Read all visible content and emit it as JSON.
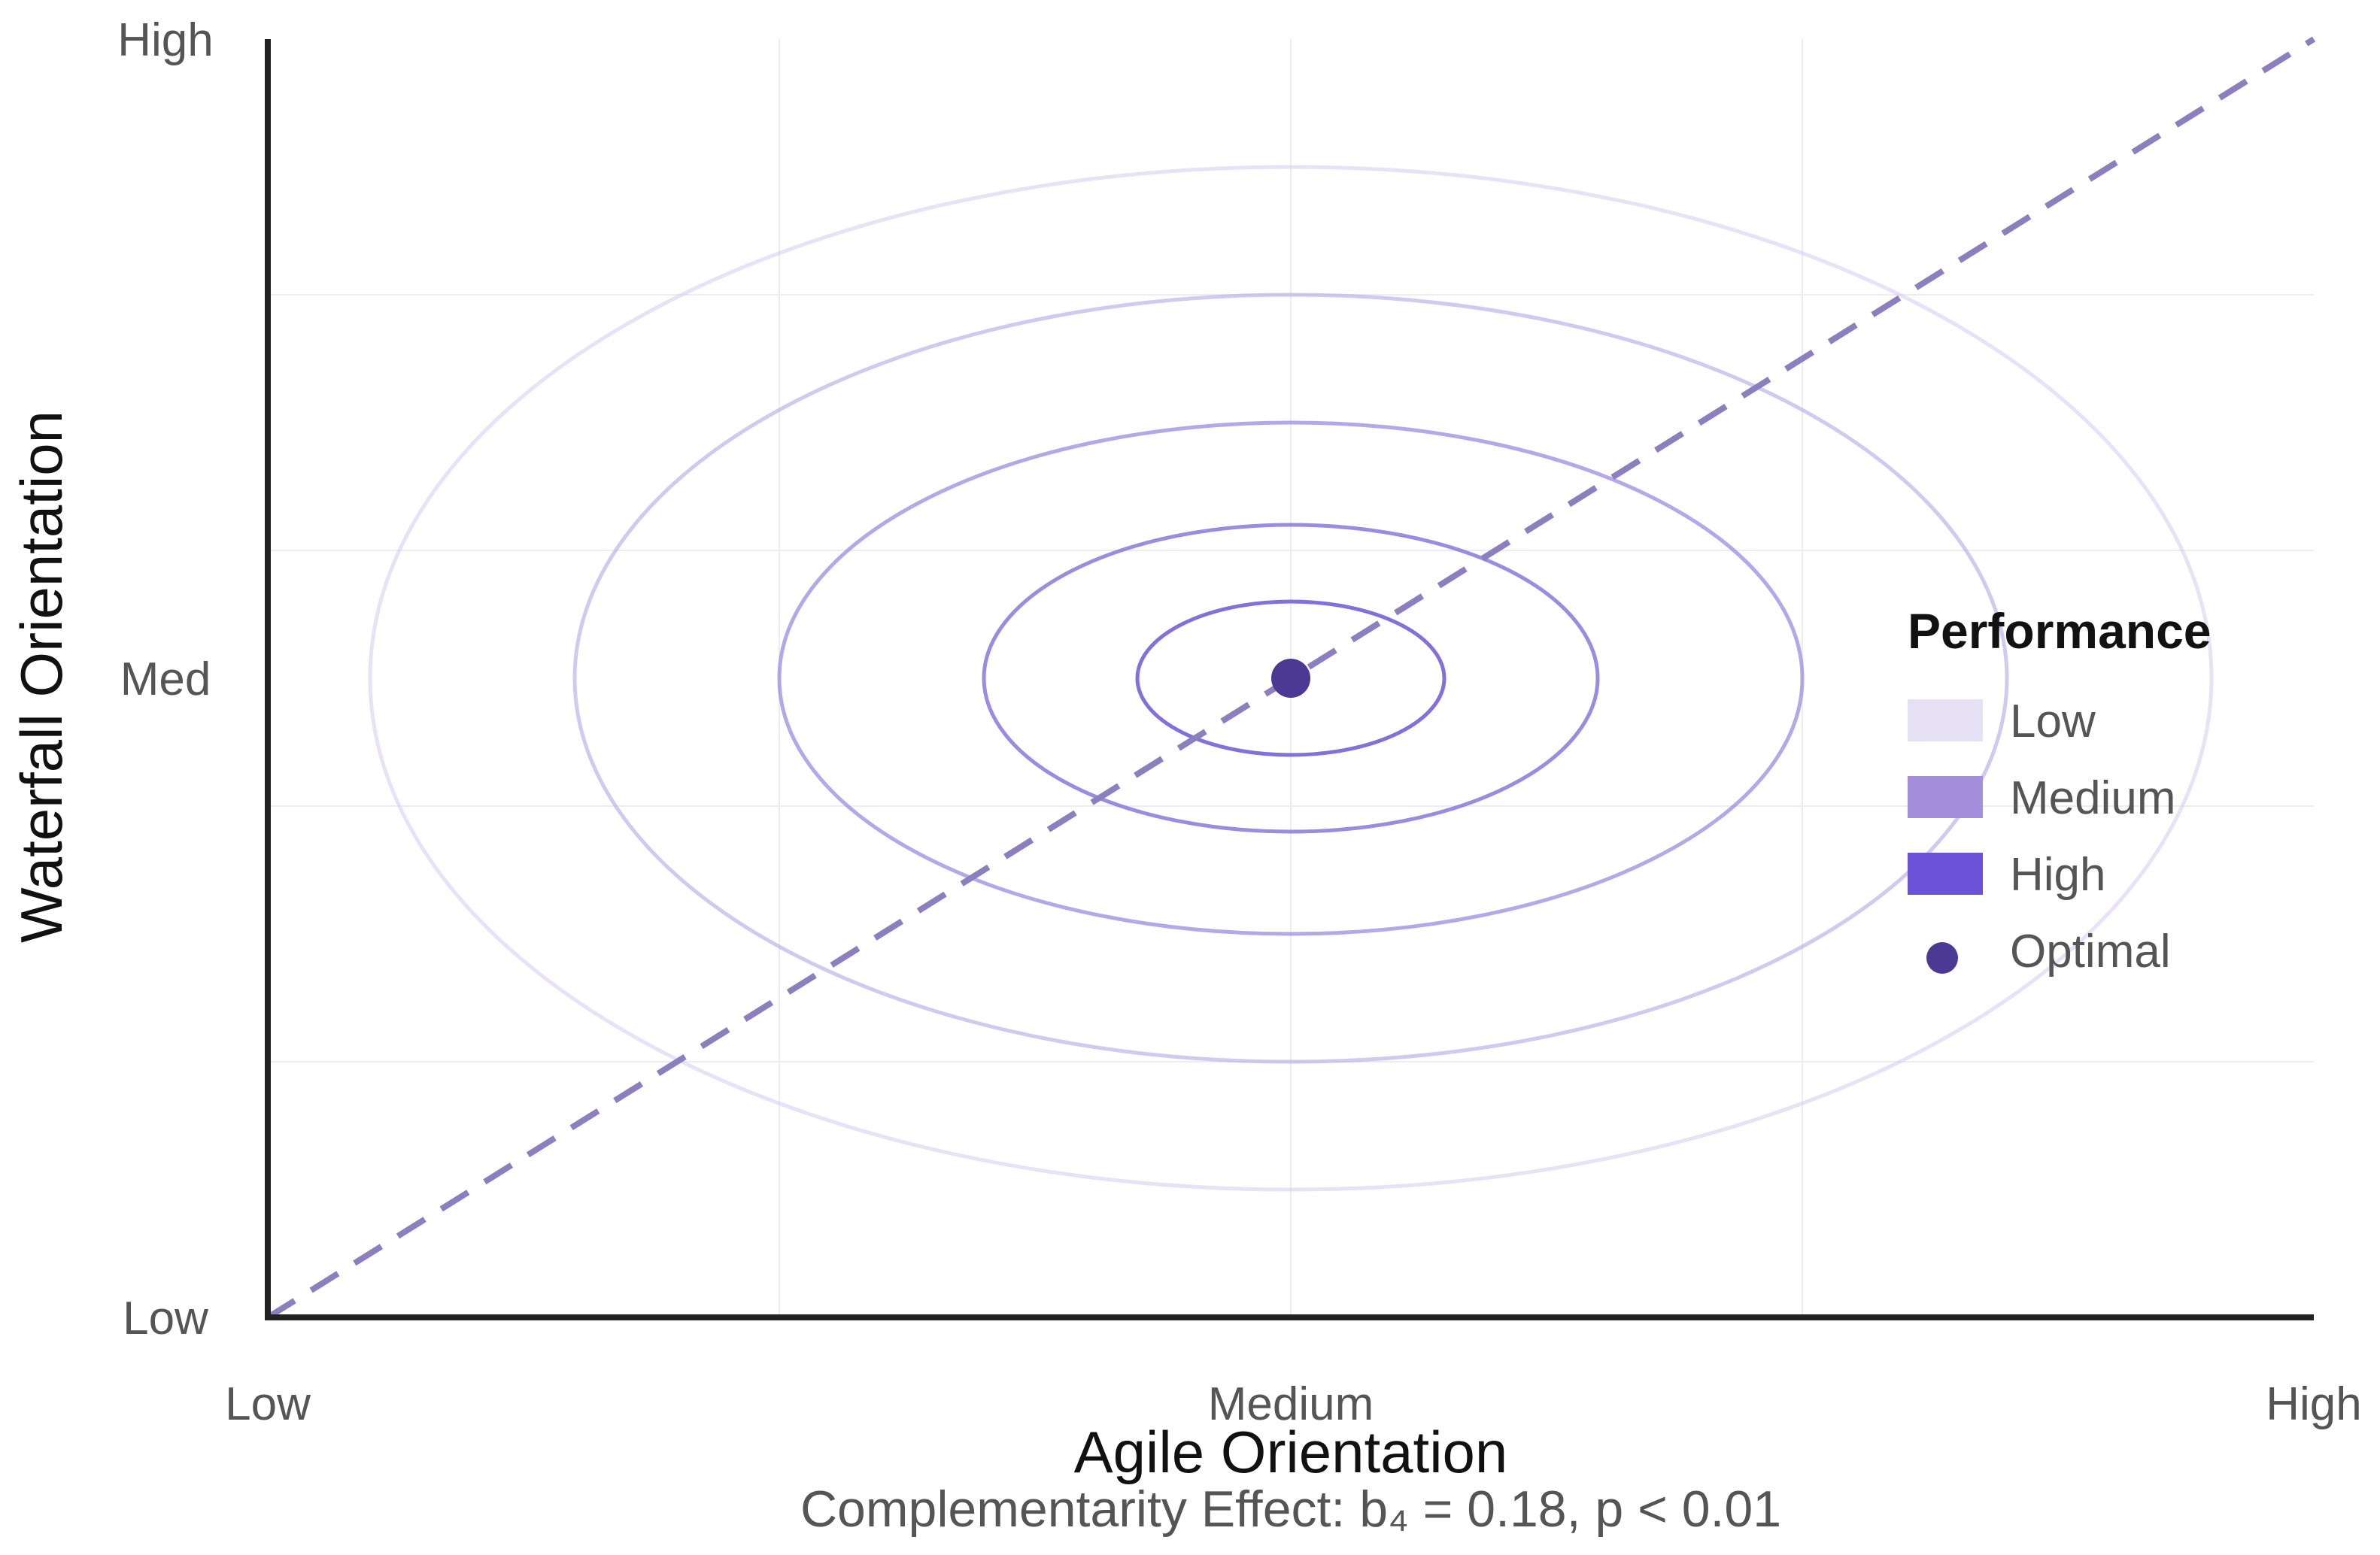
{
  "chart_data": {
    "type": "contour",
    "xlabel": "Agile Orientation",
    "ylabel": "Waterfall Orientation",
    "x_ticks": [
      "Low",
      "Medium",
      "High"
    ],
    "y_ticks": [
      "Low",
      "Med",
      "High"
    ],
    "xlim": [
      0,
      2
    ],
    "ylim": [
      0,
      2
    ],
    "caption": "Complementarity Effect: b₄ = 0.18, p < 0.01",
    "grid": true,
    "diagonal_reference_line": {
      "style": "dashed",
      "from": [
        0,
        0
      ],
      "to": [
        2,
        2
      ],
      "color": "#8b7fc0"
    },
    "center": {
      "x": 1,
      "y": 1
    },
    "contours": [
      {
        "rx": 0.15,
        "ry": 0.12,
        "color": "#7b68d9",
        "opacity": 0.95
      },
      {
        "rx": 0.3,
        "ry": 0.24,
        "color": "#8878db",
        "opacity": 0.85
      },
      {
        "rx": 0.5,
        "ry": 0.4,
        "color": "#9a8ce0",
        "opacity": 0.75
      },
      {
        "rx": 0.7,
        "ry": 0.6,
        "color": "#b2a6e6",
        "opacity": 0.6
      },
      {
        "rx": 0.9,
        "ry": 0.8,
        "color": "#d3cbef",
        "opacity": 0.55
      }
    ],
    "optimal_point": {
      "x": 1,
      "y": 1,
      "color": "#4b3a94"
    },
    "legend": {
      "title": "Performance",
      "placement": "right",
      "items": [
        {
          "label": "Low",
          "kind": "swatch",
          "color": "#e6e0f5"
        },
        {
          "label": "Medium",
          "kind": "swatch",
          "color": "#a58fdc"
        },
        {
          "label": "High",
          "kind": "swatch",
          "color": "#6b52d9"
        },
        {
          "label": "Optimal",
          "kind": "dot",
          "color": "#4b3a94"
        }
      ]
    }
  }
}
